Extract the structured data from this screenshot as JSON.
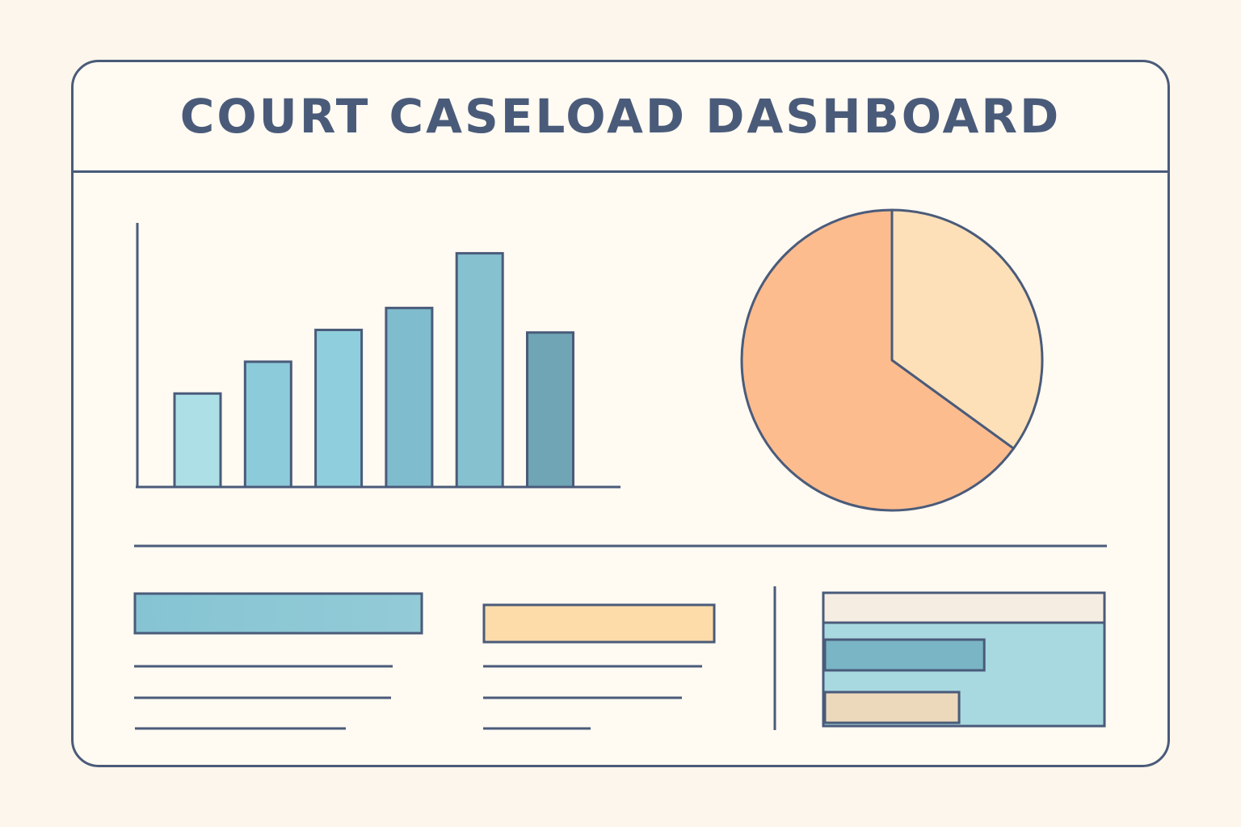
{
  "header": {
    "title": "COURT CASELOAD DASHBOARD"
  },
  "colors": {
    "background": "#fdf6ec",
    "panel": "#fffaf2",
    "outline": "#4a5b7a",
    "bar_palette": [
      "#ade0e6",
      "#8ccbd9",
      "#8fcfdd",
      "#7fbccd",
      "#86c1d0",
      "#6fa5b5"
    ],
    "pie_large": "#fdbc8e",
    "pie_small": "#fde0b8",
    "card_blue": "#8ac6d4",
    "card_peach": "#fddcaa",
    "mini_header": "#f5ede2",
    "mini_bg": "#a9d9e0",
    "mini_bar_blue": "#79b5c5",
    "mini_bar_tan": "#ecd8bb"
  },
  "chart_data": [
    {
      "type": "bar",
      "categories": [
        "",
        "",
        "",
        "",
        "",
        ""
      ],
      "values": [
        40,
        53.6,
        67.2,
        76.6,
        100,
        66.1
      ],
      "ylim": [
        0,
        113
      ],
      "title": "",
      "xlabel": "",
      "ylabel": "",
      "grid": false
    },
    {
      "type": "pie",
      "slices": [
        {
          "value": 65,
          "color": "#fdbc8e"
        },
        {
          "value": 35,
          "color": "#fde0b8"
        }
      ],
      "title": ""
    },
    {
      "type": "bar",
      "orientation": "horizontal",
      "categories": [
        "",
        ""
      ],
      "values": [
        57,
        48
      ],
      "xlim": [
        0,
        100
      ],
      "title": ""
    }
  ]
}
